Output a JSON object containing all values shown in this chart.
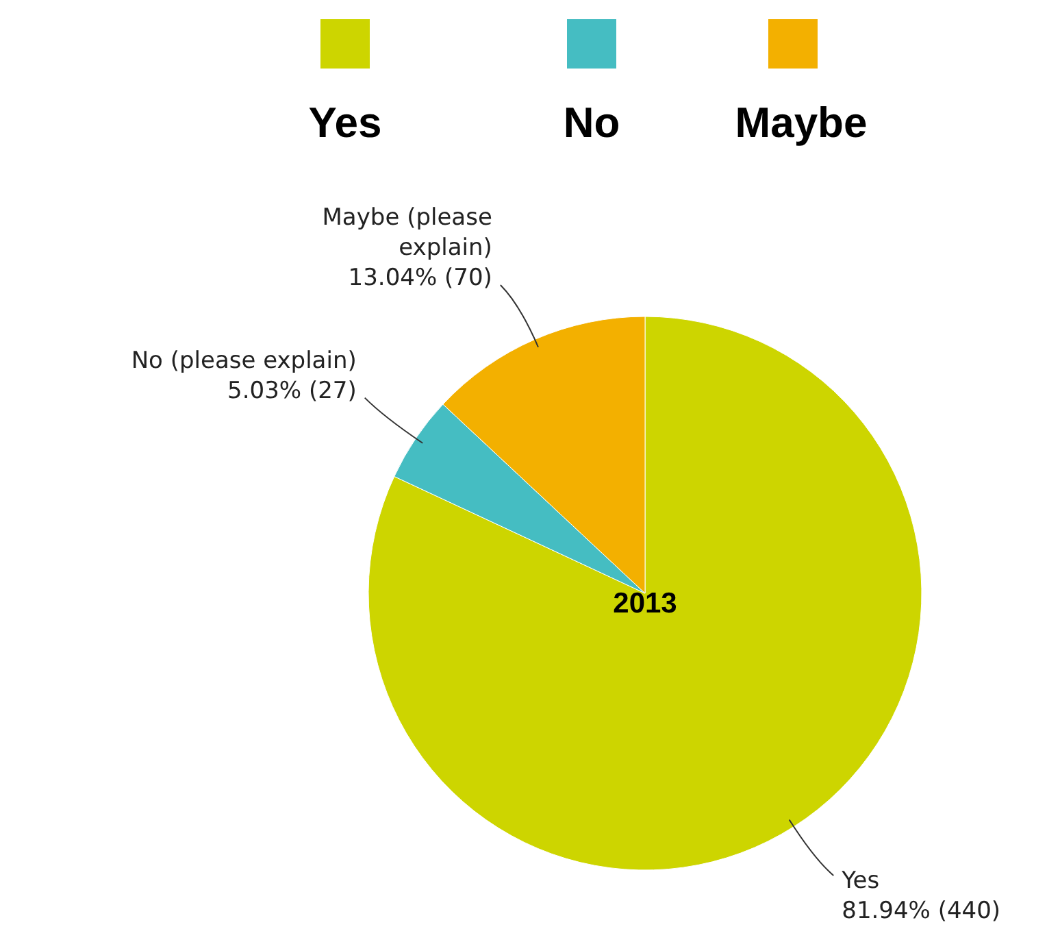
{
  "chart_data": {
    "type": "pie",
    "title": "2013",
    "categories": [
      "Yes",
      "No",
      "Maybe"
    ],
    "values": [
      440,
      27,
      70
    ],
    "colors": [
      "#cdd500",
      "#45bdc2",
      "#f3b000"
    ],
    "value_labels": [
      "81.94% (440)",
      "5.03% (27)",
      "13.04% (70)"
    ],
    "annotations": [
      {
        "text": "Yes",
        "x": "Yes"
      },
      {
        "text": "No (please explain)",
        "x": "No"
      },
      {
        "text": "Maybe (please explain)",
        "x": "Maybe"
      }
    ],
    "legend": "top"
  }
}
